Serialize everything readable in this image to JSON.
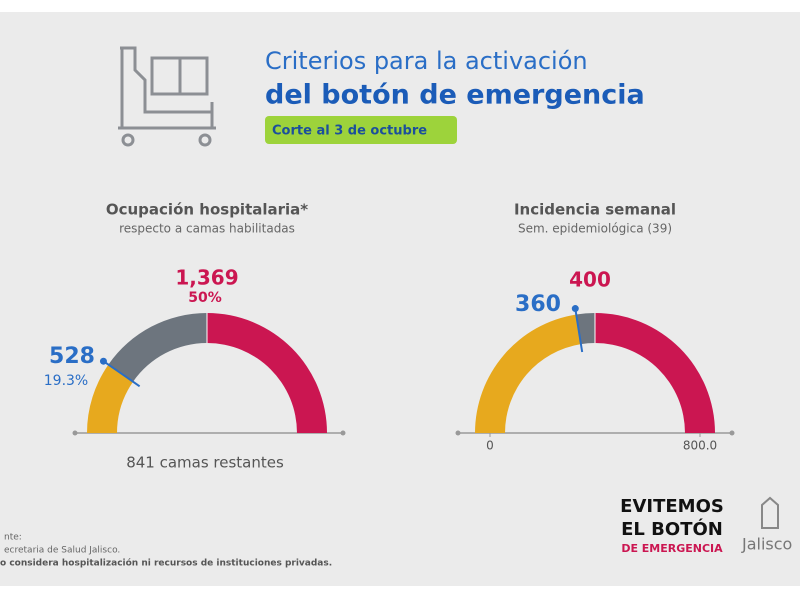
{
  "header": {
    "title_line1": "Criterios para la activación",
    "title_line2": "del botón de emergencia",
    "date": "Corte al 3 de octubre"
  },
  "chart_data": [
    {
      "type": "gauge",
      "title": "Ocupación hospitalaria*",
      "subtitle": "respecto a camas habilitadas",
      "ylim": [
        0,
        100
      ],
      "value": 19.3,
      "value_label": "19.3%",
      "count": 528,
      "threshold": 50,
      "threshold_label": "50%",
      "threshold_count": {
        "value": 1369,
        "label": "1,369"
      },
      "note": "841 camas restantes",
      "colors": [
        "#e7a91e",
        "#6d757e",
        "#cb1651"
      ]
    },
    {
      "type": "gauge",
      "title": "Incidencia semanal",
      "subtitle": "Sem. epidemiológica (39)",
      "ylim": [
        0,
        800
      ],
      "yticks": [
        0,
        {
          "value": 800,
          "label": "800.0"
        }
      ],
      "value": 360,
      "threshold": 400,
      "colors": [
        "#e7a91e",
        "#6d757e",
        "#cb1651"
      ]
    }
  ],
  "footer": {
    "source_label": "nte:",
    "source": "ecretaria de Salud Jalisco.",
    "disclaimer": "o considera hospitalización ni recursos de instituciones privadas.",
    "logo_line1": "EVITEMOS",
    "logo_line2": "EL BOTÓN",
    "logo_line3": "DE EMERGENCIA",
    "state": "Jalisco"
  }
}
